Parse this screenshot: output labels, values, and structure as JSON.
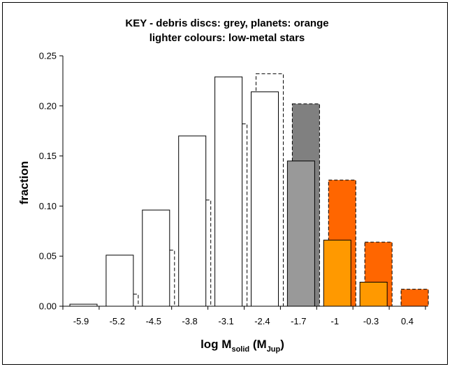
{
  "chart_data": {
    "type": "bar",
    "title_lines": [
      "KEY - debris discs: grey, planets: orange",
      "lighter colours: low-metal stars"
    ],
    "xlabel": {
      "main": "log M",
      "sub": "solid",
      "paren_open": " (M",
      "paren_sub": "Jup",
      "paren_close": ")"
    },
    "ylabel": "fraction",
    "ylim": [
      0,
      0.25
    ],
    "y_ticks": [
      "0.00",
      "0.05",
      "0.10",
      "0.15",
      "0.20",
      "0.25"
    ],
    "categories": [
      "-5.9",
      "-5.2",
      "-4.5",
      "-3.8",
      "-3.1",
      "-2.4",
      "-1.7",
      "-1",
      "-0.3",
      "0.4"
    ],
    "series": [
      {
        "values": [
          0.002,
          0.051,
          0.096,
          0.17,
          0.229,
          0.214,
          0.145,
          0.066,
          0.024,
          null
        ],
        "style": "solid",
        "fills": [
          "#ffffff",
          "#ffffff",
          "#ffffff",
          "#ffffff",
          "#ffffff",
          "#ffffff",
          "#999999",
          "#ff9900",
          "#ff9900",
          "#ffffff"
        ]
      },
      {
        "values": [
          null,
          0.012,
          0.056,
          0.106,
          0.182,
          0.232,
          0.202,
          0.126,
          0.064,
          0.017
        ],
        "style": "dashed",
        "fills": [
          "#ffffff",
          "#ffffff",
          "#ffffff",
          "#ffffff",
          "#ffffff",
          "#ffffff",
          "#808080",
          "#ff6600",
          "#ff6600",
          "#ff6600"
        ]
      }
    ],
    "grid": false,
    "legend": "none"
  }
}
